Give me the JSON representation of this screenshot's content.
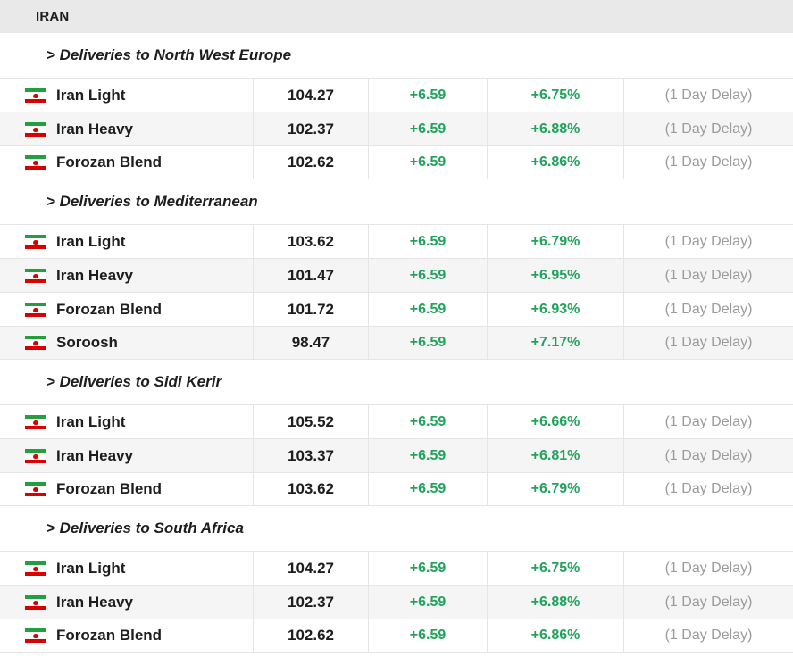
{
  "header": {
    "title": "IRAN"
  },
  "colors": {
    "positive_green": "#23a25d",
    "delay_gray": "#9b9b9b",
    "header_bg": "#e9e9e9",
    "row_alt_bg": "#f5f5f5",
    "border": "#e5e5e5",
    "text_dark": "#1d1d1d",
    "flag_green": "#239f40",
    "flag_red": "#da0000"
  },
  "flag_icon": "iran-flag-icon",
  "sections": [
    {
      "title": "> Deliveries to North West Europe",
      "rows": [
        {
          "name": "Iran Light",
          "price": "104.27",
          "change": "+6.59",
          "change_pct": "+6.75%",
          "delay": "(1 Day Delay)"
        },
        {
          "name": "Iran Heavy",
          "price": "102.37",
          "change": "+6.59",
          "change_pct": "+6.88%",
          "delay": "(1 Day Delay)"
        },
        {
          "name": "Forozan Blend",
          "price": "102.62",
          "change": "+6.59",
          "change_pct": "+6.86%",
          "delay": "(1 Day Delay)"
        }
      ]
    },
    {
      "title": "> Deliveries to Mediterranean",
      "rows": [
        {
          "name": "Iran Light",
          "price": "103.62",
          "change": "+6.59",
          "change_pct": "+6.79%",
          "delay": "(1 Day Delay)"
        },
        {
          "name": "Iran Heavy",
          "price": "101.47",
          "change": "+6.59",
          "change_pct": "+6.95%",
          "delay": "(1 Day Delay)"
        },
        {
          "name": "Forozan Blend",
          "price": "101.72",
          "change": "+6.59",
          "change_pct": "+6.93%",
          "delay": "(1 Day Delay)"
        },
        {
          "name": "Soroosh",
          "price": "98.47",
          "change": "+6.59",
          "change_pct": "+7.17%",
          "delay": "(1 Day Delay)"
        }
      ]
    },
    {
      "title": "> Deliveries to Sidi Kerir",
      "rows": [
        {
          "name": "Iran Light",
          "price": "105.52",
          "change": "+6.59",
          "change_pct": "+6.66%",
          "delay": "(1 Day Delay)"
        },
        {
          "name": "Iran Heavy",
          "price": "103.37",
          "change": "+6.59",
          "change_pct": "+6.81%",
          "delay": "(1 Day Delay)"
        },
        {
          "name": "Forozan Blend",
          "price": "103.62",
          "change": "+6.59",
          "change_pct": "+6.79%",
          "delay": "(1 Day Delay)"
        }
      ]
    },
    {
      "title": "> Deliveries to South Africa",
      "rows": [
        {
          "name": "Iran Light",
          "price": "104.27",
          "change": "+6.59",
          "change_pct": "+6.75%",
          "delay": "(1 Day Delay)"
        },
        {
          "name": "Iran Heavy",
          "price": "102.37",
          "change": "+6.59",
          "change_pct": "+6.88%",
          "delay": "(1 Day Delay)"
        },
        {
          "name": "Forozan Blend",
          "price": "102.62",
          "change": "+6.59",
          "change_pct": "+6.86%",
          "delay": "(1 Day Delay)"
        }
      ]
    }
  ]
}
